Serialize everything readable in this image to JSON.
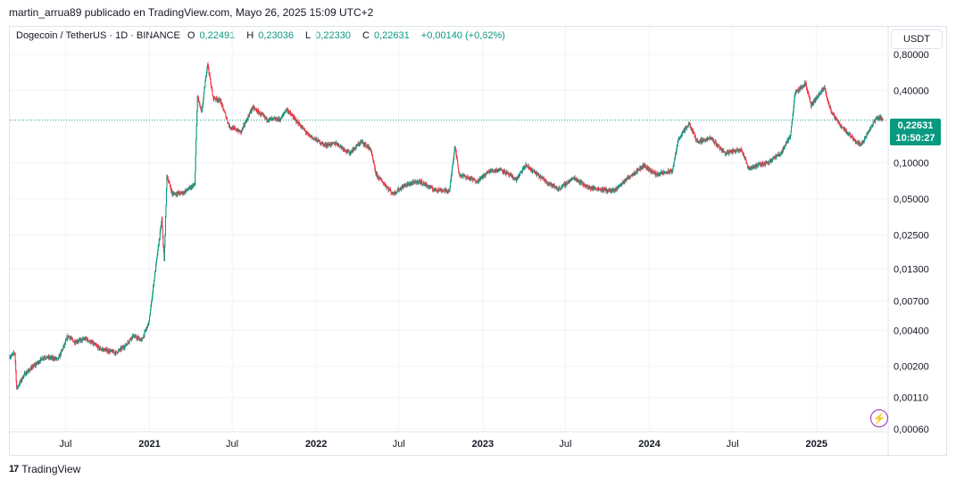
{
  "header": {
    "publish_line": "martin_arrua89 publicado en TradingView.com, Mayo 26, 2025 15:09 UTC+2"
  },
  "legend": {
    "symbol": "Dogecoin / TetherUS · 1D · BINANCE",
    "open_label": "O",
    "open": "0,22491",
    "high_label": "H",
    "high": "0,23036",
    "low_label": "L",
    "low": "0,22330",
    "close_label": "C",
    "close": "0,22631",
    "change": "+0,00140 (+0,62%)"
  },
  "currency_button": "USDT",
  "last_price_tag": {
    "price": "0,22631",
    "countdown": "10:50:27"
  },
  "logo_text": "TradingView",
  "colors": {
    "up": "#089981",
    "down": "#f23645",
    "grid": "#f0f3fa",
    "axis_text": "#131722"
  },
  "chart_data": {
    "type": "candlestick",
    "y_scale": "log",
    "ylim": [
      0.0006,
      1.0
    ],
    "y_ticks": [
      {
        "v": 0.8,
        "label": "0,80000"
      },
      {
        "v": 0.4,
        "label": "0,40000"
      },
      {
        "v": 0.1,
        "label": "0,10000"
      },
      {
        "v": 0.05,
        "label": "0,05000"
      },
      {
        "v": 0.025,
        "label": "0,02500"
      },
      {
        "v": 0.013,
        "label": "0,01300"
      },
      {
        "v": 0.007,
        "label": "0,00700"
      },
      {
        "v": 0.004,
        "label": "0,00400"
      },
      {
        "v": 0.002,
        "label": "0,00200"
      },
      {
        "v": 0.0011,
        "label": "0,00110"
      },
      {
        "v": 0.0006,
        "label": "0,00060"
      }
    ],
    "x_range": [
      "2020-03-01",
      "2025-06-03"
    ],
    "x_ticks": [
      {
        "date": "2020-07-01",
        "label": "Jul",
        "bold": false
      },
      {
        "date": "2021-01-01",
        "label": "2021",
        "bold": true
      },
      {
        "date": "2021-07-01",
        "label": "Jul",
        "bold": false
      },
      {
        "date": "2022-01-01",
        "label": "2022",
        "bold": true
      },
      {
        "date": "2022-07-01",
        "label": "Jul",
        "bold": false
      },
      {
        "date": "2023-01-01",
        "label": "2023",
        "bold": true
      },
      {
        "date": "2023-07-01",
        "label": "Jul",
        "bold": false
      },
      {
        "date": "2024-01-01",
        "label": "2024",
        "bold": true
      },
      {
        "date": "2024-07-01",
        "label": "Jul",
        "bold": false
      },
      {
        "date": "2025-01-01",
        "label": "2025",
        "bold": true
      }
    ],
    "last_price": 0.22631,
    "price_path": [
      [
        "2020-03-01",
        0.0024
      ],
      [
        "2020-03-12",
        0.0026
      ],
      [
        "2020-03-16",
        0.0013
      ],
      [
        "2020-04-01",
        0.0017
      ],
      [
        "2020-05-15",
        0.0024
      ],
      [
        "2020-06-15",
        0.0023
      ],
      [
        "2020-07-07",
        0.0036
      ],
      [
        "2020-07-20",
        0.0032
      ],
      [
        "2020-08-15",
        0.0034
      ],
      [
        "2020-09-15",
        0.0028
      ],
      [
        "2020-10-20",
        0.0026
      ],
      [
        "2020-11-10",
        0.003
      ],
      [
        "2020-11-25",
        0.0036
      ],
      [
        "2020-12-15",
        0.0033
      ],
      [
        "2020-12-31",
        0.0047
      ],
      [
        "2021-01-10",
        0.0098
      ],
      [
        "2021-01-28",
        0.034
      ],
      [
        "2021-02-02",
        0.015
      ],
      [
        "2021-02-08",
        0.078
      ],
      [
        "2021-02-20",
        0.055
      ],
      [
        "2021-03-15",
        0.056
      ],
      [
        "2021-04-10",
        0.065
      ],
      [
        "2021-04-16",
        0.36
      ],
      [
        "2021-04-25",
        0.26
      ],
      [
        "2021-05-08",
        0.68
      ],
      [
        "2021-05-20",
        0.35
      ],
      [
        "2021-06-05",
        0.33
      ],
      [
        "2021-06-25",
        0.2
      ],
      [
        "2021-07-20",
        0.18
      ],
      [
        "2021-08-15",
        0.29
      ],
      [
        "2021-09-15",
        0.23
      ],
      [
        "2021-10-15",
        0.23
      ],
      [
        "2021-10-28",
        0.28
      ],
      [
        "2021-11-20",
        0.22
      ],
      [
        "2021-12-15",
        0.17
      ],
      [
        "2022-01-20",
        0.14
      ],
      [
        "2022-02-15",
        0.145
      ],
      [
        "2022-03-15",
        0.12
      ],
      [
        "2022-04-10",
        0.15
      ],
      [
        "2022-04-30",
        0.13
      ],
      [
        "2022-05-12",
        0.08
      ],
      [
        "2022-06-18",
        0.055
      ],
      [
        "2022-07-15",
        0.065
      ],
      [
        "2022-08-15",
        0.07
      ],
      [
        "2022-09-15",
        0.06
      ],
      [
        "2022-10-20",
        0.058
      ],
      [
        "2022-11-01",
        0.14
      ],
      [
        "2022-11-10",
        0.08
      ],
      [
        "2022-12-20",
        0.07
      ],
      [
        "2023-01-15",
        0.085
      ],
      [
        "2023-02-10",
        0.088
      ],
      [
        "2023-03-15",
        0.072
      ],
      [
        "2023-04-05",
        0.095
      ],
      [
        "2023-05-15",
        0.072
      ],
      [
        "2023-06-15",
        0.06
      ],
      [
        "2023-07-20",
        0.075
      ],
      [
        "2023-08-20",
        0.062
      ],
      [
        "2023-10-15",
        0.058
      ],
      [
        "2023-11-15",
        0.075
      ],
      [
        "2023-12-20",
        0.095
      ],
      [
        "2024-01-15",
        0.08
      ],
      [
        "2024-02-20",
        0.085
      ],
      [
        "2024-03-05",
        0.16
      ],
      [
        "2024-03-28",
        0.21
      ],
      [
        "2024-04-15",
        0.15
      ],
      [
        "2024-05-15",
        0.16
      ],
      [
        "2024-06-15",
        0.12
      ],
      [
        "2024-07-20",
        0.13
      ],
      [
        "2024-08-05",
        0.09
      ],
      [
        "2024-09-15",
        0.1
      ],
      [
        "2024-10-15",
        0.12
      ],
      [
        "2024-11-05",
        0.17
      ],
      [
        "2024-11-15",
        0.38
      ],
      [
        "2024-12-08",
        0.46
      ],
      [
        "2024-12-20",
        0.3
      ],
      [
        "2025-01-18",
        0.42
      ],
      [
        "2025-02-03",
        0.26
      ],
      [
        "2025-02-25",
        0.2
      ],
      [
        "2025-03-15",
        0.17
      ],
      [
        "2025-04-07",
        0.14
      ],
      [
        "2025-04-25",
        0.18
      ],
      [
        "2025-05-10",
        0.23
      ],
      [
        "2025-05-20",
        0.24
      ],
      [
        "2025-05-26",
        0.22631
      ]
    ]
  }
}
